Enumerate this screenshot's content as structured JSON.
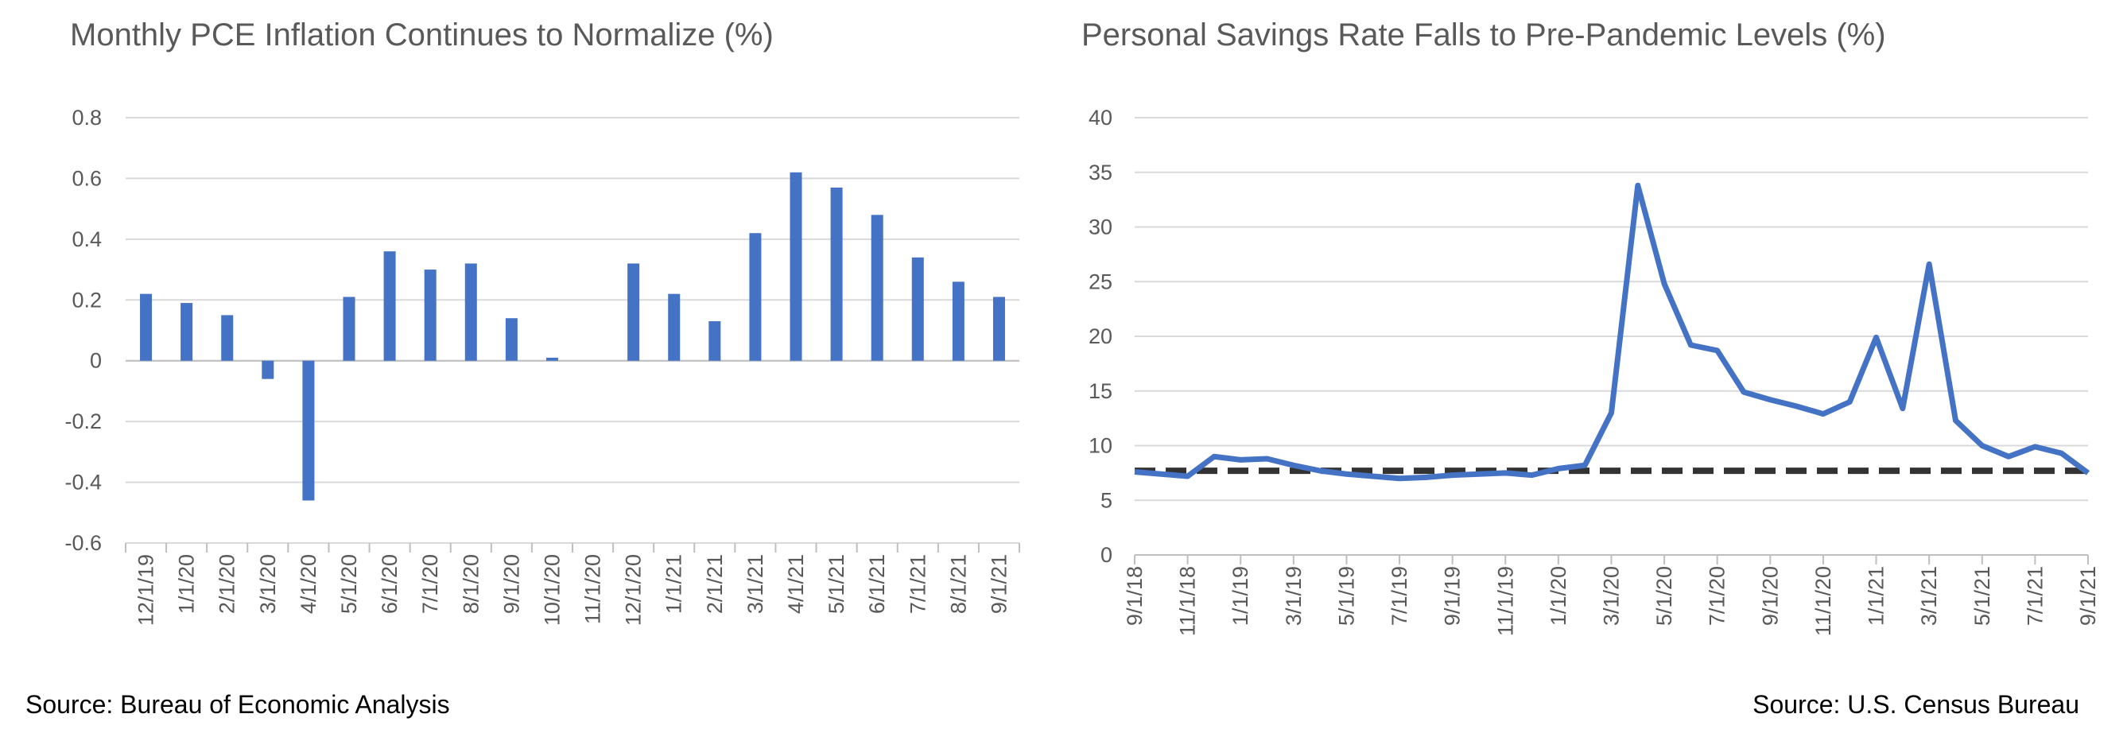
{
  "colors": {
    "bar": "#4472C4",
    "line": "#4472C4",
    "reference": "#333333",
    "grid": "#D9D9D9",
    "axis": "#BFBFBF",
    "text": "#595959"
  },
  "sources": {
    "left": "Source: Bureau of Economic Analysis",
    "right": "Source: U.S. Census Bureau"
  },
  "chart_data": [
    {
      "type": "bar",
      "title": "Monthly PCE Inflation Continues to Normalize (%)",
      "xlabel": "",
      "ylabel": "",
      "ylim": [
        -0.6,
        0.8
      ],
      "yticks": [
        -0.6,
        -0.4,
        -0.2,
        0,
        0.2,
        0.4,
        0.6,
        0.8
      ],
      "ytick_labels": [
        "-0.6",
        "-0.4",
        "-0.2",
        "0",
        "0.2",
        "0.4",
        "0.6",
        "0.8"
      ],
      "grid": true,
      "categories": [
        "12/1/19",
        "1/1/20",
        "2/1/20",
        "3/1/20",
        "4/1/20",
        "5/1/20",
        "6/1/20",
        "7/1/20",
        "8/1/20",
        "9/1/20",
        "10/1/20",
        "11/1/20",
        "12/1/20",
        "1/1/21",
        "2/1/21",
        "3/1/21",
        "4/1/21",
        "5/1/21",
        "6/1/21",
        "7/1/21",
        "8/1/21",
        "9/1/21"
      ],
      "values": [
        0.22,
        0.19,
        0.15,
        -0.06,
        -0.46,
        0.21,
        0.36,
        0.3,
        0.32,
        0.14,
        0.01,
        0.0,
        0.32,
        0.22,
        0.13,
        0.42,
        0.62,
        0.57,
        0.48,
        0.34,
        0.26,
        0.21
      ]
    },
    {
      "type": "line",
      "title": "Personal Savings Rate Falls to Pre-Pandemic Levels (%)",
      "xlabel": "",
      "ylabel": "",
      "ylim": [
        0,
        40
      ],
      "yticks": [
        0,
        5,
        10,
        15,
        20,
        25,
        30,
        35,
        40
      ],
      "ytick_labels": [
        "0",
        "5",
        "10",
        "15",
        "20",
        "25",
        "30",
        "35",
        "40"
      ],
      "grid": true,
      "x": [
        "9/1/18",
        "10/1/18",
        "11/1/18",
        "12/1/18",
        "1/1/19",
        "2/1/19",
        "3/1/19",
        "4/1/19",
        "5/1/19",
        "6/1/19",
        "7/1/19",
        "8/1/19",
        "9/1/19",
        "10/1/19",
        "11/1/19",
        "12/1/19",
        "1/1/20",
        "2/1/20",
        "3/1/20",
        "4/1/20",
        "5/1/20",
        "6/1/20",
        "7/1/20",
        "8/1/20",
        "9/1/20",
        "10/1/20",
        "11/1/20",
        "12/1/20",
        "1/1/21",
        "2/1/21",
        "3/1/21",
        "4/1/21",
        "5/1/21",
        "6/1/21",
        "7/1/21",
        "8/1/21",
        "9/1/21"
      ],
      "x_tick_labels": [
        "9/1/18",
        "11/1/18",
        "1/1/19",
        "3/1/19",
        "5/1/19",
        "7/1/19",
        "9/1/19",
        "11/1/19",
        "1/1/20",
        "3/1/20",
        "5/1/20",
        "7/1/20",
        "9/1/20",
        "11/1/20",
        "1/1/21",
        "3/1/21",
        "5/1/21",
        "7/1/21",
        "9/1/21"
      ],
      "series": [
        {
          "style": "solid",
          "values": [
            7.6,
            7.4,
            7.2,
            9.0,
            8.7,
            8.8,
            8.2,
            7.7,
            7.4,
            7.2,
            7.0,
            7.1,
            7.3,
            7.4,
            7.5,
            7.3,
            7.9,
            8.2,
            13.0,
            33.8,
            24.8,
            19.2,
            18.7,
            14.9,
            14.2,
            13.6,
            12.9,
            14.0,
            19.9,
            13.4,
            26.6,
            12.3,
            10.0,
            9.0,
            9.9,
            9.3,
            7.5
          ]
        },
        {
          "style": "dashed",
          "values": [
            7.7,
            7.7,
            7.7,
            7.7,
            7.7,
            7.7,
            7.7,
            7.7,
            7.7,
            7.7,
            7.7,
            7.7,
            7.7,
            7.7,
            7.7,
            7.7,
            7.7,
            7.7,
            7.7,
            7.7,
            7.7,
            7.7,
            7.7,
            7.7,
            7.7,
            7.7,
            7.7,
            7.7,
            7.7,
            7.7,
            7.7,
            7.7,
            7.7,
            7.7,
            7.7,
            7.7,
            7.7
          ]
        }
      ]
    }
  ]
}
